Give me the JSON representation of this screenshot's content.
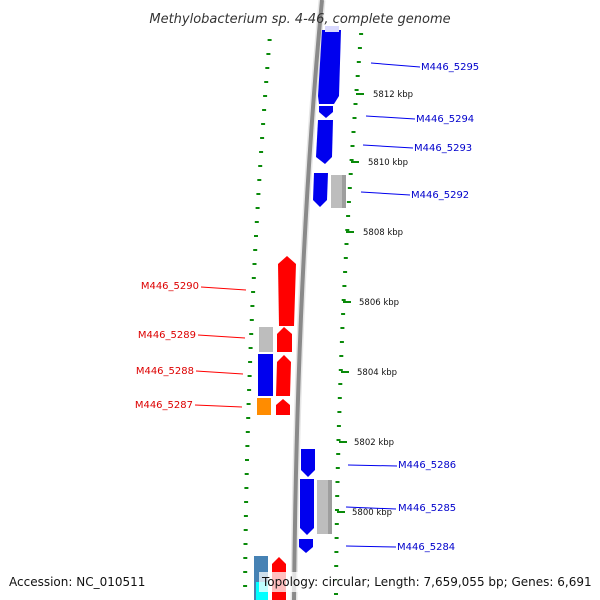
{
  "title": "Methylobacterium sp. 4-46, complete genome",
  "accession": "Accession: NC_010511",
  "summary": "Topology: circular; Length: 7,659,055 bp; Genes: 6,691",
  "colors": {
    "forward": "#ff0000",
    "reverse": "#0000ee",
    "other": "#bdbdbd",
    "orange": "#ff8c00",
    "steel": "#4682b4",
    "cyan": "#00ffff",
    "tick": "#0a8a0a",
    "backbone": "#8a8a8a"
  },
  "kbp_labels": [
    "5812 kbp",
    "5810 kbp",
    "5808 kbp",
    "5806 kbp",
    "5804 kbp",
    "5802 kbp",
    "5800 kbp"
  ],
  "genes": [
    {
      "id": "M446_5295",
      "strand": "reverse"
    },
    {
      "id": "M446_5294",
      "strand": "reverse"
    },
    {
      "id": "M446_5293",
      "strand": "reverse"
    },
    {
      "id": "M446_5292",
      "strand": "reverse"
    },
    {
      "id": "M446_5290",
      "strand": "forward"
    },
    {
      "id": "M446_5289",
      "strand": "forward"
    },
    {
      "id": "M446_5288",
      "strand": "forward"
    },
    {
      "id": "M446_5287",
      "strand": "forward"
    },
    {
      "id": "M446_5286",
      "strand": "reverse"
    },
    {
      "id": "M446_5285",
      "strand": "reverse"
    },
    {
      "id": "M446_5284",
      "strand": "reverse"
    }
  ]
}
